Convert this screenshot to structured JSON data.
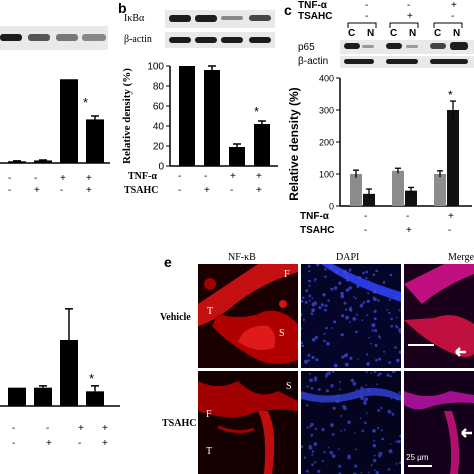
{
  "panel_b": {
    "letter": "b",
    "blot_labels": [
      "IκBα",
      "β-actin"
    ],
    "ylabel": "Relative density (%)",
    "yticks": [
      "0",
      "20",
      "40",
      "60",
      "80",
      "100"
    ],
    "row_labels": [
      "TNF-α",
      "TSAHC"
    ],
    "tnf_signs": [
      "-",
      "-",
      "+",
      "+"
    ],
    "tsahc_signs": [
      "-",
      "+",
      "-",
      "+"
    ],
    "star": "*"
  },
  "panel_c": {
    "letter": "c",
    "top_labels": [
      "TNF-α",
      "TSAHC"
    ],
    "top_tnf": [
      "-",
      "-",
      "+"
    ],
    "top_tsahc": [
      "-",
      "+",
      "-"
    ],
    "cn_labels": [
      "C",
      "N",
      "C",
      "N",
      "C",
      "N"
    ],
    "blot_labels": [
      "p65",
      "β-actin"
    ],
    "ylabel": "Relative density (%)",
    "yticks": [
      "0",
      "100",
      "200",
      "300",
      "400"
    ],
    "row_labels": [
      "TNF-α",
      "TSAHC"
    ],
    "tnf_signs": [
      "-",
      "-",
      "+"
    ],
    "tsahc_signs": [
      "-",
      "+",
      "-"
    ],
    "star": "*"
  },
  "panel_e": {
    "letter": "e",
    "col_labels": [
      "NF-κB",
      "DAPI",
      "Merge"
    ],
    "row_labels": [
      "Vehicle",
      "TSAHC"
    ],
    "tissue_labels_vehicle": [
      "T",
      "F",
      "S"
    ],
    "tissue_labels_tsahc": [
      "S",
      "F",
      "T"
    ],
    "scalebar": "25 μm"
  },
  "left_top": {
    "signs_row1": [
      "-",
      "-",
      "+",
      "+"
    ],
    "signs_row2": [
      "-",
      "+",
      "-",
      "+"
    ],
    "star": "*"
  },
  "left_bottom": {
    "signs_row1": [
      "-",
      "-",
      "+",
      "+"
    ],
    "signs_row2": [
      "-",
      "+",
      "-",
      "+"
    ],
    "star": "*"
  },
  "chart_data": [
    {
      "type": "bar",
      "panel": "a (partial, left top)",
      "categories": [
        "1",
        "2",
        "3",
        "4"
      ],
      "values": [
        2,
        3,
        98,
        51
      ],
      "error": [
        0.5,
        0.5,
        0,
        4
      ],
      "ylim": [
        0,
        110
      ]
    },
    {
      "type": "bar",
      "panel": "b",
      "categories": [
        "1",
        "2",
        "3",
        "4"
      ],
      "values": [
        100,
        96,
        19,
        42
      ],
      "error": [
        0,
        4,
        3,
        3
      ],
      "ylabel": "Relative density (%)",
      "ylim": [
        0,
        100
      ]
    },
    {
      "type": "bar",
      "panel": "c",
      "categories": [
        "1",
        "2",
        "3"
      ],
      "series": [
        {
          "color": "#8c8c8c",
          "values": [
            100,
            110,
            100
          ],
          "error": [
            12,
            8,
            10
          ]
        },
        {
          "color": "#111111",
          "values": [
            38,
            48,
            300
          ],
          "error": [
            15,
            10,
            28
          ]
        }
      ],
      "ylabel": "Relative density (%)",
      "ylim": [
        0,
        400
      ]
    },
    {
      "type": "bar",
      "panel": "d (partial, left bottom)",
      "categories": [
        "1",
        "2",
        "3",
        "4"
      ],
      "values": [
        1.0,
        1.0,
        3.6,
        0.8
      ],
      "error": [
        0,
        0.1,
        1.7,
        0.3
      ],
      "ylim": [
        0,
        6
      ]
    }
  ]
}
